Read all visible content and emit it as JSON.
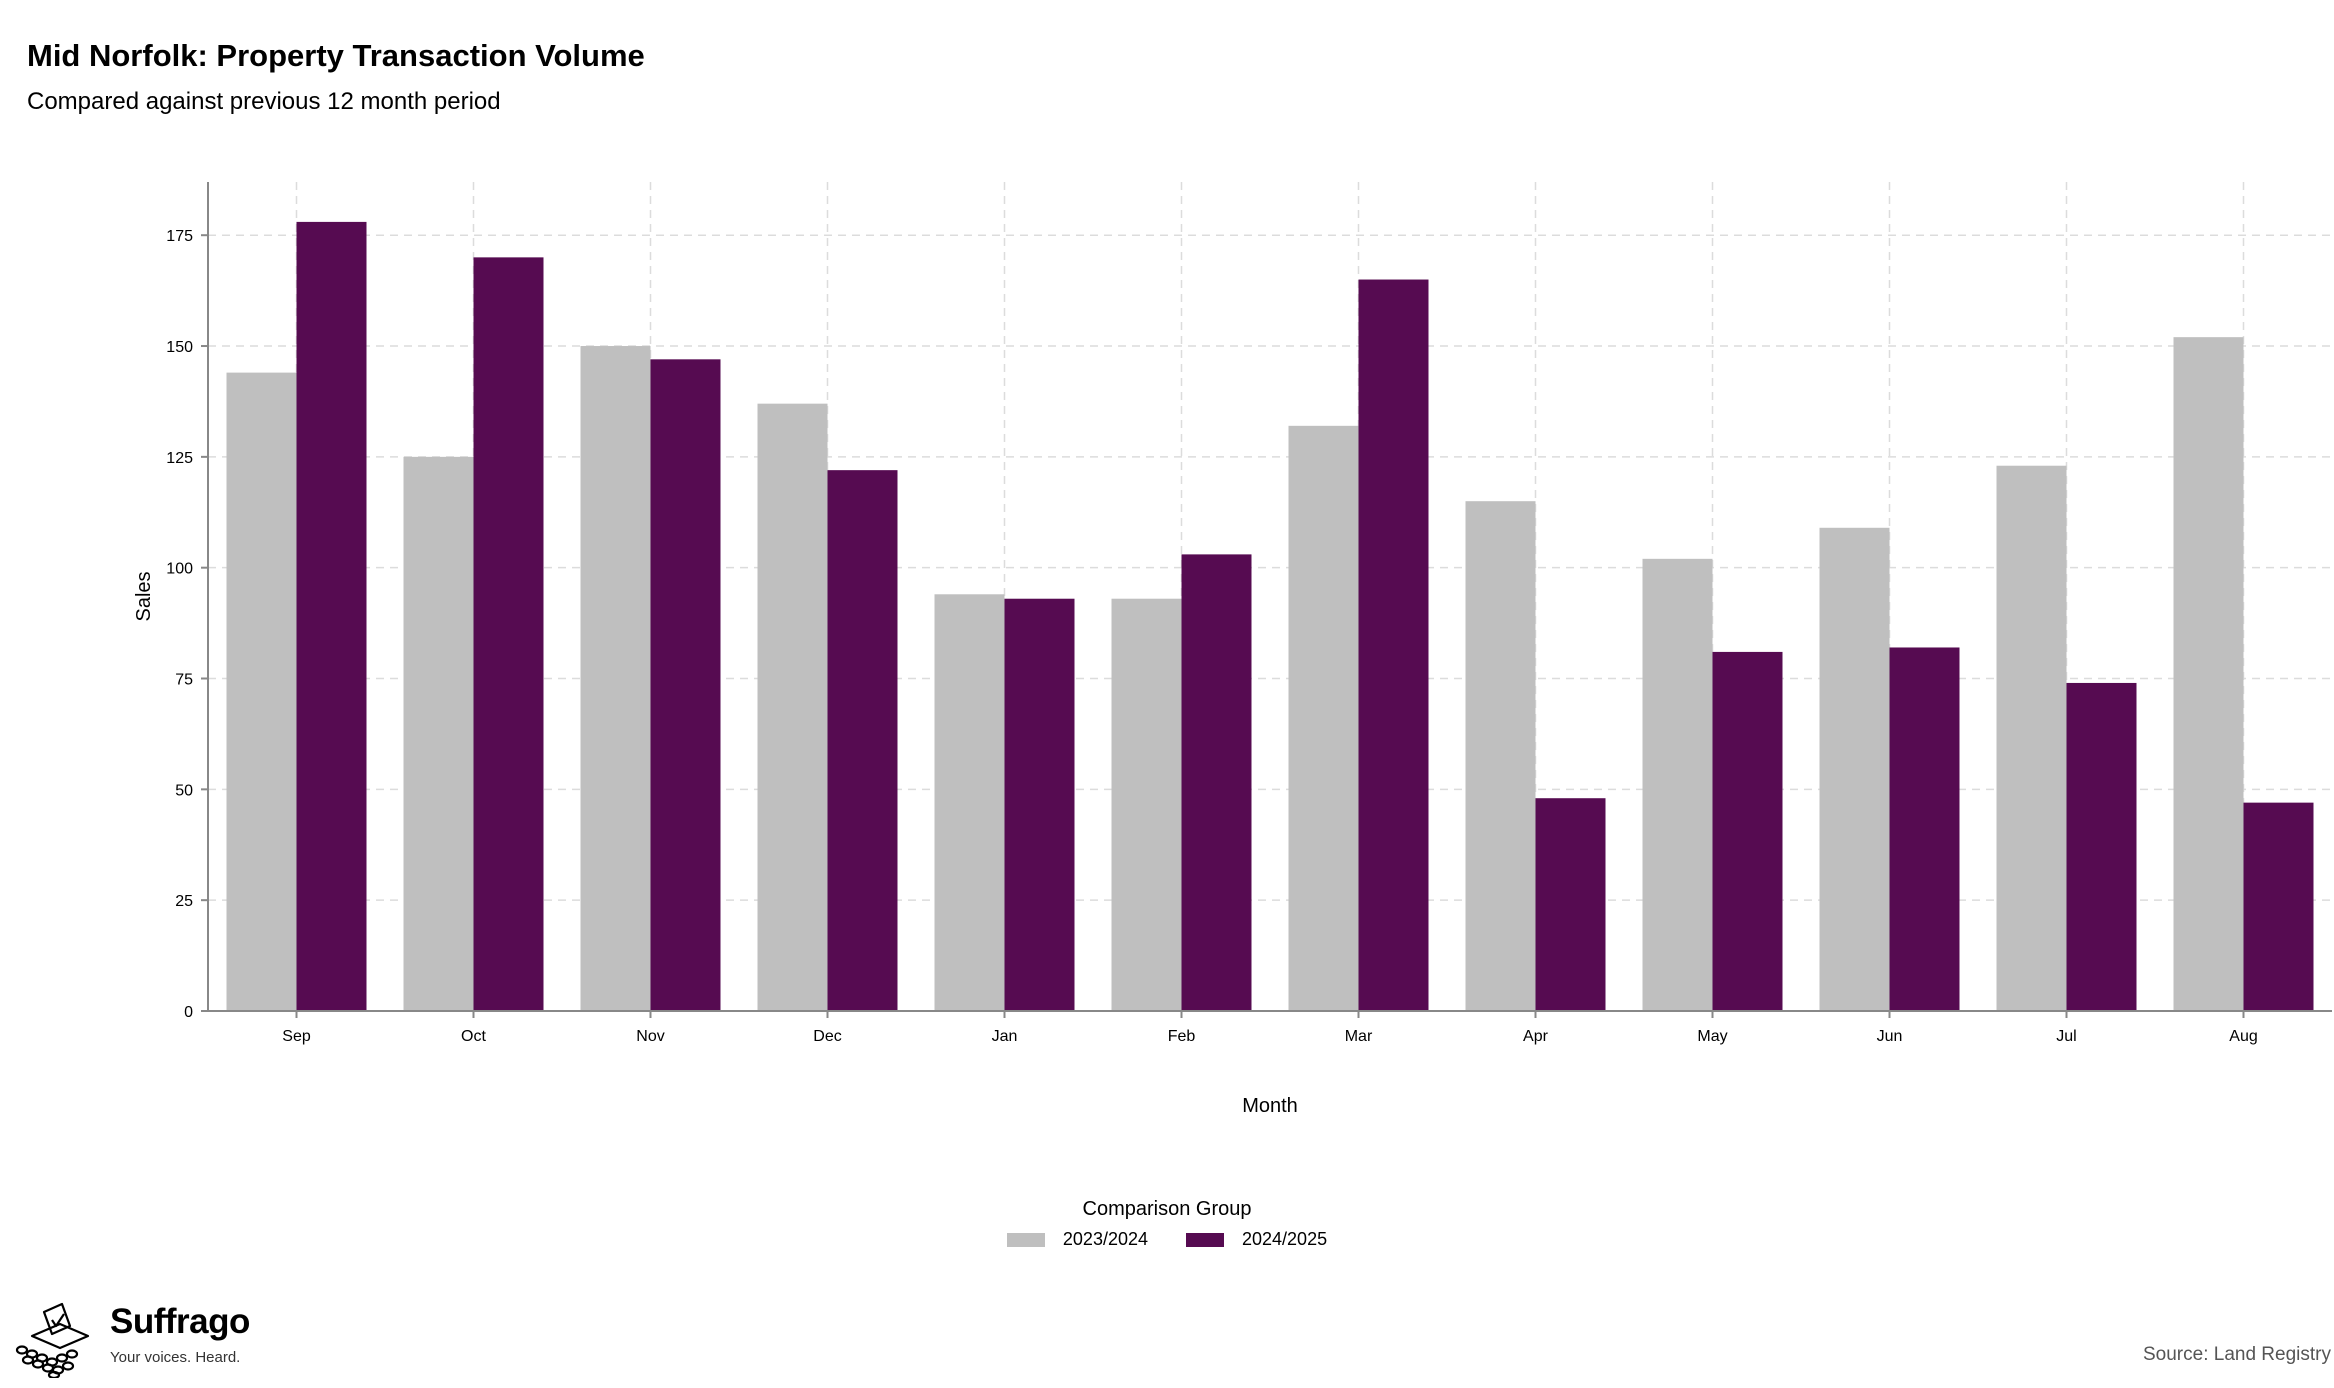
{
  "header": {
    "title": "Mid Norfolk: Property Transaction Volume",
    "subtitle": "Compared against previous 12 month period"
  },
  "chart_data": {
    "type": "bar",
    "categories": [
      "Sep",
      "Oct",
      "Nov",
      "Dec",
      "Jan",
      "Feb",
      "Mar",
      "Apr",
      "May",
      "Jun",
      "Jul",
      "Aug"
    ],
    "series": [
      {
        "name": "2023/2024",
        "color": "#bfbfbf",
        "values": [
          144,
          125,
          150,
          137,
          94,
          93,
          132,
          115,
          102,
          109,
          123,
          152
        ]
      },
      {
        "name": "2024/2025",
        "color": "#560b51",
        "values": [
          178,
          170,
          147,
          122,
          93,
          103,
          165,
          48,
          81,
          82,
          74,
          47
        ]
      }
    ],
    "xlabel": "Month",
    "ylabel": "Sales",
    "yticks": [
      0,
      25,
      50,
      75,
      100,
      125,
      150,
      175
    ],
    "ylim": [
      0,
      187
    ],
    "grid": true,
    "legend_title": "Comparison Group",
    "legend_position": "bottom"
  },
  "footer": {
    "brand_name": "Suffrago",
    "brand_tagline": "Your voices. Heard.",
    "source": "Source: Land Registry",
    "logo_icon": "ballot-box-icon"
  }
}
